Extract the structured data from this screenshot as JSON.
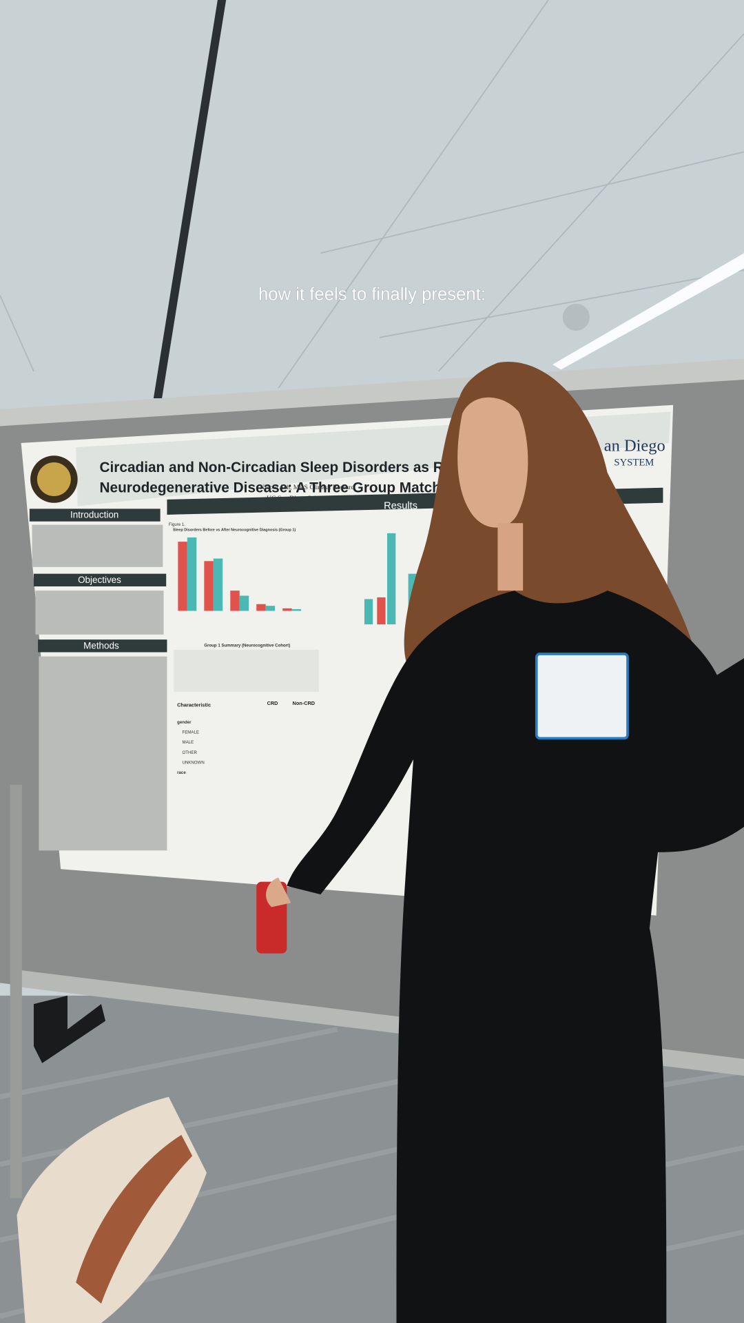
{
  "caption": "how it feels to finally present:",
  "poster": {
    "title_line_1": "Circadian and Non-Circadian Sleep Disorders as Ris",
    "title_line_2": "Neurodegenerative Disease: A Three Group Matched C",
    "author": "Nicole Ash, MAS Clinical Researc",
    "affiliation": "UC San Diego School of Medicine",
    "logo_line_1": "an Diego",
    "logo_line_2": "SYSTEM",
    "sections": [
      "Introduction",
      "Objectives",
      "Methods",
      "Results"
    ],
    "figure_label": "Figure 1.",
    "figure_title": "Sleep Disorders Before vs After Neurocognitive Diagnosis (Group 1)",
    "table_title": "Group 1 Summary (Neurocognitive Cohort)",
    "table_header": [
      "Characteristic",
      "CRD",
      "Non-CRD"
    ],
    "table_rows": [
      "gender",
      "FEMALE",
      "MALE",
      "OTHER",
      "UNKNOWN",
      "race"
    ]
  }
}
